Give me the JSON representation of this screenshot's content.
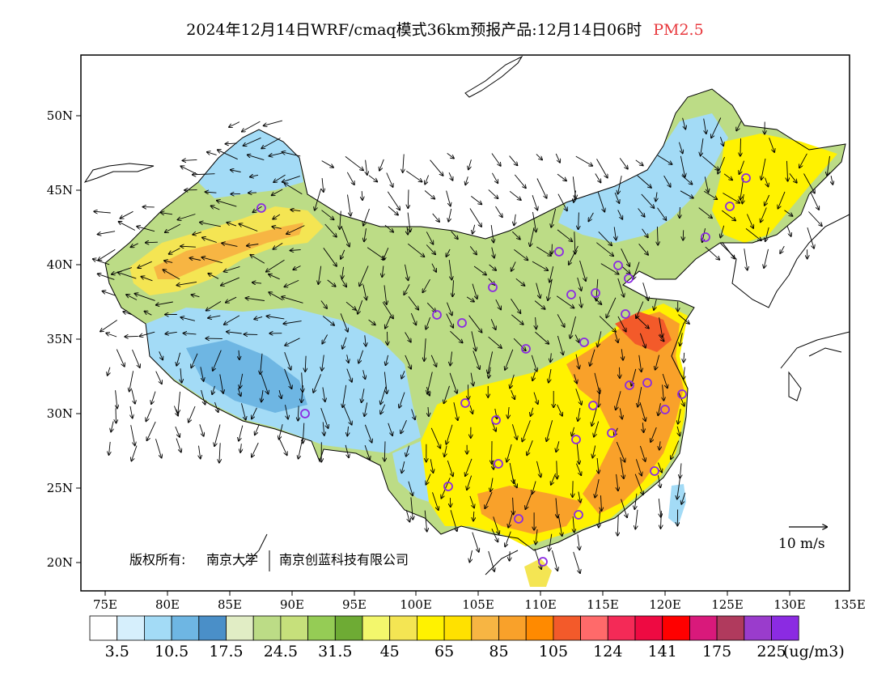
{
  "title": {
    "main": "2024年12月14日WRF/cmaq模式36km预报产品:12月14日06时",
    "pollutant": "PM2.5"
  },
  "axes": {
    "lon_labels": [
      "75E",
      "80E",
      "85E",
      "90E",
      "95E",
      "100E",
      "105E",
      "110E",
      "115E",
      "120E",
      "125E",
      "130E",
      "135E"
    ],
    "lat_labels": [
      "50N",
      "45N",
      "40N",
      "35N",
      "30N",
      "25N",
      "20N"
    ]
  },
  "colorbar": {
    "colors": [
      "#ffffff",
      "#d6effc",
      "#a3dbf6",
      "#6eb6e3",
      "#4a8fc8",
      "#e1edc5",
      "#bcdc86",
      "#c6e07b",
      "#95cc55",
      "#6eab34",
      "#f3f76c",
      "#f4e553",
      "#fff200",
      "#ffe100",
      "#f7b543",
      "#f9a12a",
      "#ff8a00",
      "#f35a2a",
      "#ff6a6a",
      "#f42a57",
      "#ee0a42",
      "#ff0000",
      "#d9197b",
      "#b03a5d",
      "#9a3ccc",
      "#8b2be2"
    ],
    "labels": [
      "3.5",
      "10.5",
      "17.5",
      "24.5",
      "31.5",
      "45",
      "65",
      "85",
      "105",
      "124",
      "141",
      "175",
      "225"
    ],
    "unit": "(ug/m3)"
  },
  "credit": {
    "prefix": "版权所有:",
    "org1": "南京大学",
    "org2": "南京创蓝科技有限公司"
  },
  "wind_scale": {
    "label": "10 m/s"
  },
  "map_colors": {
    "clean": "#a3dbf6",
    "moderate": "#bcdc86",
    "yellow": "#fff200",
    "orange": "#ff8a00",
    "red": "#f35a2a"
  }
}
